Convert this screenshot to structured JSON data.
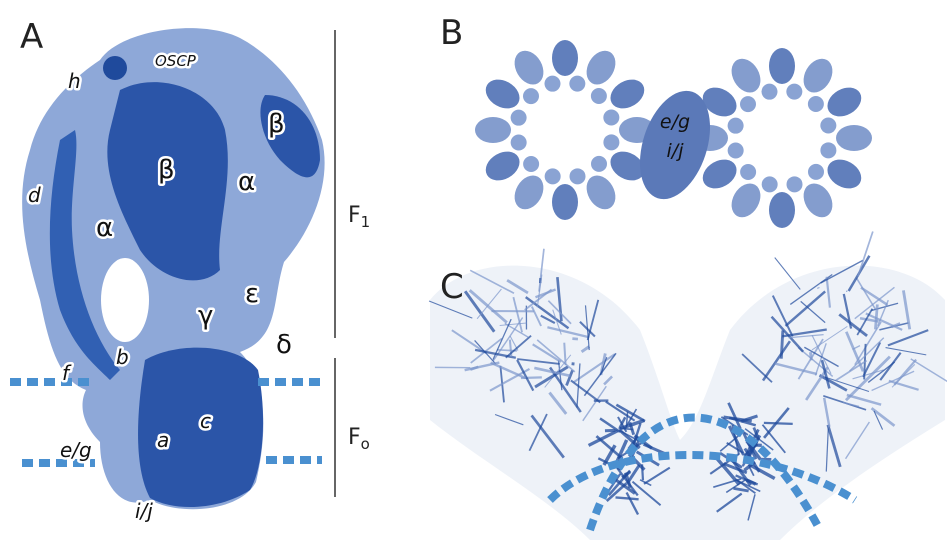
{
  "panel_a": {
    "label": "A",
    "parts": [
      "OSCP",
      "h",
      "β",
      "β",
      "α",
      "d",
      "α",
      "ε",
      "γ",
      "δ",
      "f",
      "b",
      "c",
      "a",
      "e/g",
      "i/j"
    ],
    "f1": {
      "main": "F",
      "sub": "1"
    },
    "fo": {
      "main": "F",
      "sub": "o"
    }
  },
  "panel_b": {
    "label": "B",
    "parts": [
      "e/g",
      "i/j"
    ]
  },
  "panel_c": {
    "label": "C"
  }
}
